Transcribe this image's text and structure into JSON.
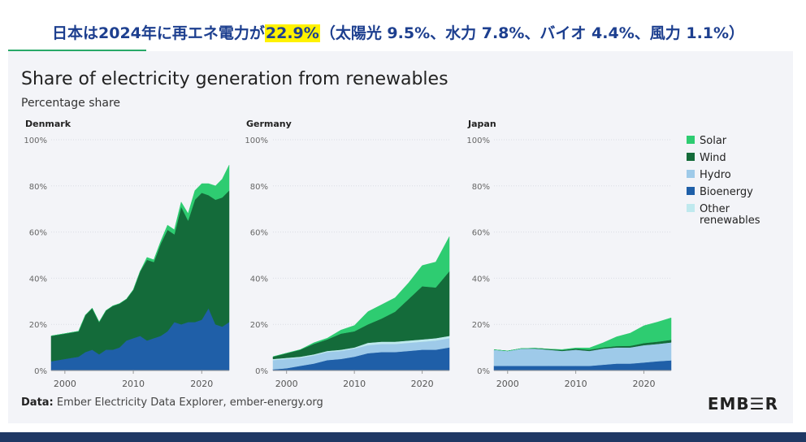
{
  "headline": {
    "before": "日本は2024年に再エネ電力が",
    "highlight": "22.9%",
    "after": "（太陽光 9.5%、水力 7.8%、バイオ 4.4%、風力 1.1%）"
  },
  "footer": {
    "source_label": "Data:",
    "source_text": "Ember Electricity Data Explorer, ember-energy.org",
    "logo": "EMB☰R"
  },
  "colors": {
    "Solar": "#2ecc71",
    "Wind": "#146b3a",
    "Hydro": "#9ecae9",
    "Bioenergy": "#1f5fa8",
    "Other renewables": "#bfe9ee"
  },
  "chart_data": {
    "type": "area",
    "title": "Share of electricity generation from renewables",
    "subtitle": "Percentage share",
    "ylabel": "Percentage share",
    "ylim": [
      0,
      100
    ],
    "yticks": [
      "0%",
      "20%",
      "40%",
      "60%",
      "80%",
      "100%"
    ],
    "xticks": [
      "2000",
      "2010",
      "2020"
    ],
    "legend": [
      "Solar",
      "Wind",
      "Hydro",
      "Bioenergy",
      "Other renewables"
    ],
    "panels": [
      {
        "title": "Denmark",
        "x": [
          1998,
          2000,
          2002,
          2003,
          2004,
          2005,
          2006,
          2007,
          2008,
          2009,
          2010,
          2011,
          2012,
          2013,
          2014,
          2015,
          2016,
          2017,
          2018,
          2019,
          2020,
          2021,
          2022,
          2023,
          2024
        ],
        "series": [
          {
            "name": "Bioenergy",
            "values": [
              4,
              5,
              6,
              8,
              9,
              7,
              9,
              9,
              10,
              13,
              14,
              15,
              13,
              14,
              15,
              17,
              21,
              20,
              21,
              21,
              22,
              27,
              20,
              19,
              21
            ]
          },
          {
            "name": "Wind",
            "values": [
              11,
              11,
              11,
              16,
              18,
              14,
              17,
              19,
              19,
              18,
              21,
              28,
              35,
              33,
              40,
              44,
              38,
              51,
              44,
              53,
              55,
              49,
              54,
              56,
              57
            ]
          },
          {
            "name": "Solar",
            "values": [
              0,
              0,
              0,
              0,
              0,
              0,
              0,
              0,
              0,
              0,
              0,
              0,
              1,
              1,
              1,
              2,
              2,
              2,
              3,
              4,
              4,
              5,
              6,
              8,
              11
            ]
          }
        ]
      },
      {
        "title": "Germany",
        "x": [
          1998,
          2000,
          2002,
          2004,
          2006,
          2008,
          2010,
          2012,
          2014,
          2016,
          2018,
          2020,
          2022,
          2024
        ],
        "series": [
          {
            "name": "Bioenergy",
            "values": [
              0.5,
              1,
              2,
              3,
              4.5,
              5,
              6,
              7.5,
              8,
              8,
              8.5,
              9,
              9,
              10
            ]
          },
          {
            "name": "Hydro",
            "values": [
              4,
              4,
              3.5,
              3.5,
              3.5,
              3.5,
              3.5,
              3.5,
              3.5,
              3.5,
              3.5,
              3.5,
              4,
              4
            ]
          },
          {
            "name": "Other renewables",
            "values": [
              0.5,
              0.5,
              0.5,
              0.5,
              0.5,
              0.5,
              0.5,
              1,
              1,
              1,
              1,
              1,
              1,
              1
            ]
          },
          {
            "name": "Wind",
            "values": [
              1,
              2,
              3,
              4.5,
              5,
              7,
              7,
              8,
              10,
              13,
              18,
              23,
              22,
              28
            ]
          },
          {
            "name": "Solar",
            "values": [
              0,
              0,
              0,
              0.5,
              0.5,
              1.5,
              2.5,
              5.5,
              6,
              6,
              7,
              9,
              11,
              15
            ]
          }
        ]
      },
      {
        "title": "Japan",
        "x": [
          1998,
          2000,
          2002,
          2004,
          2006,
          2008,
          2010,
          2012,
          2014,
          2016,
          2018,
          2020,
          2022,
          2024
        ],
        "series": [
          {
            "name": "Bioenergy",
            "values": [
              2,
              2,
              2,
              2,
              2,
              2,
              2,
              2,
              2.5,
              3,
              3,
              3.5,
              4,
              4.4
            ]
          },
          {
            "name": "Hydro",
            "values": [
              7,
              6.5,
              7.5,
              7.5,
              7,
              6.5,
              7,
              6.5,
              7,
              7,
              7,
              7.5,
              7.5,
              7.8
            ]
          },
          {
            "name": "Wind",
            "values": [
              0,
              0,
              0,
              0.2,
              0.3,
              0.4,
              0.5,
              0.5,
              0.5,
              0.6,
              0.7,
              0.9,
              1,
              1.1
            ]
          },
          {
            "name": "Solar",
            "values": [
              0,
              0,
              0,
              0,
              0,
              0.2,
              0.3,
              0.8,
              2,
              4,
              5.5,
              7.5,
              8.5,
              9.5
            ]
          }
        ]
      }
    ]
  }
}
